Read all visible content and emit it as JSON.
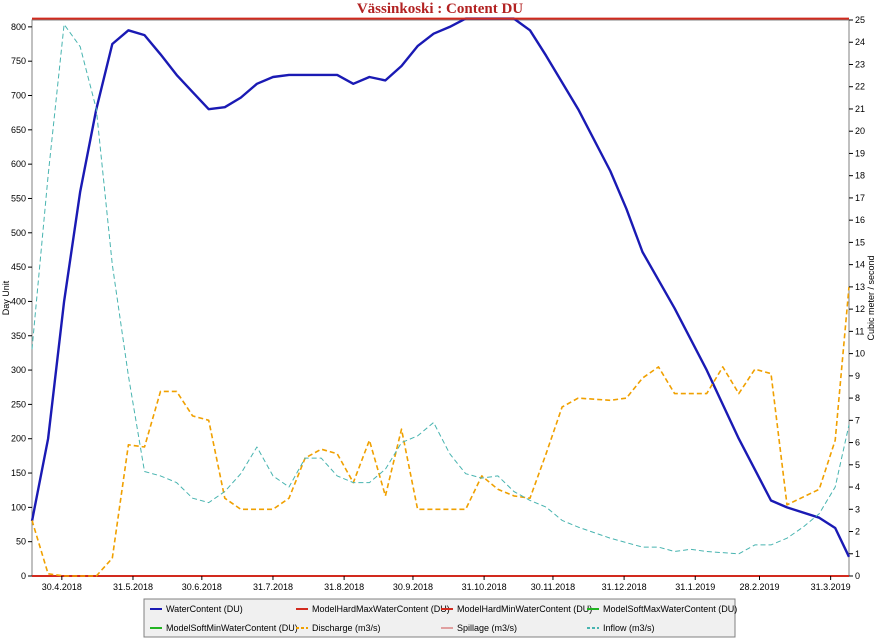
{
  "chart_data": {
    "type": "line",
    "title": "Vässinkoski : Content DU",
    "ylabel": "Day Unit",
    "y2label": "Cubic meter / second",
    "ylim": [
      0,
      810
    ],
    "yticks": [
      0,
      50,
      100,
      150,
      200,
      250,
      300,
      350,
      400,
      450,
      500,
      550,
      600,
      650,
      700,
      750,
      800
    ],
    "y2lim": [
      0,
      25
    ],
    "y2ticks": [
      0,
      1,
      2,
      3,
      4,
      5,
      6,
      7,
      8,
      9,
      10,
      11,
      12,
      13,
      14,
      15,
      16,
      17,
      18,
      19,
      20,
      21,
      22,
      23,
      24,
      25
    ],
    "xlim": [
      "2018-04-17",
      "2019-04-08"
    ],
    "xticks": [
      {
        "date": "2018-04-30",
        "label": "30.4.2018"
      },
      {
        "date": "2018-05-31",
        "label": "31.5.2018"
      },
      {
        "date": "2018-06-30",
        "label": "30.6.2018"
      },
      {
        "date": "2018-07-31",
        "label": "31.7.2018"
      },
      {
        "date": "2018-08-31",
        "label": "31.8.2018"
      },
      {
        "date": "2018-09-30",
        "label": "30.9.2018"
      },
      {
        "date": "2018-10-31",
        "label": "31.10.2018"
      },
      {
        "date": "2018-11-30",
        "label": "30.11.2018"
      },
      {
        "date": "2018-12-31",
        "label": "31.12.2018"
      },
      {
        "date": "2019-01-31",
        "label": "31.1.2019"
      },
      {
        "date": "2019-02-28",
        "label": "28.2.2019"
      },
      {
        "date": "2019-03-31",
        "label": "31.3.2019"
      }
    ],
    "legend_position": "bottom",
    "series": [
      {
        "name": "WaterContent (DU)",
        "axis": "left",
        "color": "#1a1ab4",
        "style": "solid",
        "points": [
          [
            "2018-04-17",
            80
          ],
          [
            "2018-04-24",
            200
          ],
          [
            "2018-05-01",
            400
          ],
          [
            "2018-05-08",
            560
          ],
          [
            "2018-05-15",
            680
          ],
          [
            "2018-05-22",
            775
          ],
          [
            "2018-05-29",
            795
          ],
          [
            "2018-06-05",
            788
          ],
          [
            "2018-06-12",
            760
          ],
          [
            "2018-06-19",
            730
          ],
          [
            "2018-06-26",
            705
          ],
          [
            "2018-07-03",
            680
          ],
          [
            "2018-07-10",
            683
          ],
          [
            "2018-07-17",
            697
          ],
          [
            "2018-07-24",
            717
          ],
          [
            "2018-07-31",
            727
          ],
          [
            "2018-08-07",
            730
          ],
          [
            "2018-08-21",
            730
          ],
          [
            "2018-08-28",
            730
          ],
          [
            "2018-09-04",
            717
          ],
          [
            "2018-09-11",
            727
          ],
          [
            "2018-09-18",
            722
          ],
          [
            "2018-09-25",
            743
          ],
          [
            "2018-10-02",
            772
          ],
          [
            "2018-10-09",
            790
          ],
          [
            "2018-10-16",
            800
          ],
          [
            "2018-10-23",
            812
          ],
          [
            "2018-11-06",
            812
          ],
          [
            "2018-11-13",
            812
          ],
          [
            "2018-11-20",
            795
          ],
          [
            "2018-11-27",
            758
          ],
          [
            "2018-12-11",
            680
          ],
          [
            "2018-12-25",
            590
          ],
          [
            "2019-01-01",
            535
          ],
          [
            "2019-01-08",
            472
          ],
          [
            "2019-01-22",
            390
          ],
          [
            "2019-02-05",
            300
          ],
          [
            "2019-02-19",
            200
          ],
          [
            "2019-03-05",
            110
          ],
          [
            "2019-03-12",
            100
          ],
          [
            "2019-03-26",
            85
          ],
          [
            "2019-04-02",
            70
          ],
          [
            "2019-04-08",
            28
          ]
        ]
      },
      {
        "name": "ModelHardMaxWaterContent (DU)",
        "axis": "left",
        "color": "#d22a1e",
        "style": "solid",
        "points": [
          [
            "2018-04-17",
            812
          ],
          [
            "2019-04-08",
            812
          ]
        ]
      },
      {
        "name": "ModelHardMinWaterContent (DU)",
        "axis": "left",
        "color": "#d22a1e",
        "style": "solid",
        "points": [
          [
            "2018-04-17",
            0
          ],
          [
            "2019-04-08",
            0
          ]
        ]
      },
      {
        "name": "ModelSoftMaxWaterContent (DU)",
        "axis": "left",
        "color": "#22b422",
        "style": "solid",
        "points": []
      },
      {
        "name": "ModelSoftMinWaterContent (DU)",
        "axis": "left",
        "color": "#22b422",
        "style": "solid",
        "points": []
      },
      {
        "name": "Discharge (m3/s)",
        "axis": "right",
        "color": "#f0a000",
        "style": "dashed",
        "points": [
          [
            "2018-04-17",
            2.5
          ],
          [
            "2018-04-24",
            0.1
          ],
          [
            "2018-05-01",
            0
          ],
          [
            "2018-05-15",
            0
          ],
          [
            "2018-05-22",
            0.8
          ],
          [
            "2018-05-29",
            5.9
          ],
          [
            "2018-06-05",
            5.8
          ],
          [
            "2018-06-12",
            8.3
          ],
          [
            "2018-06-19",
            8.3
          ],
          [
            "2018-06-26",
            7.2
          ],
          [
            "2018-07-03",
            7.0
          ],
          [
            "2018-07-10",
            3.5
          ],
          [
            "2018-07-17",
            3.0
          ],
          [
            "2018-07-31",
            3.0
          ],
          [
            "2018-08-07",
            3.5
          ],
          [
            "2018-08-14",
            5.3
          ],
          [
            "2018-08-21",
            5.7
          ],
          [
            "2018-08-28",
            5.5
          ],
          [
            "2018-09-04",
            4.2
          ],
          [
            "2018-09-11",
            6.1
          ],
          [
            "2018-09-18",
            3.6
          ],
          [
            "2018-09-25",
            6.6
          ],
          [
            "2018-10-02",
            3.0
          ],
          [
            "2018-10-23",
            3.0
          ],
          [
            "2018-10-30",
            4.5
          ],
          [
            "2018-11-06",
            3.9
          ],
          [
            "2018-11-13",
            3.6
          ],
          [
            "2018-11-20",
            3.5
          ],
          [
            "2018-11-27",
            5.5
          ],
          [
            "2018-12-04",
            7.6
          ],
          [
            "2018-12-11",
            8.0
          ],
          [
            "2018-12-25",
            7.9
          ],
          [
            "2019-01-01",
            8.0
          ],
          [
            "2019-01-08",
            8.9
          ],
          [
            "2019-01-15",
            9.4
          ],
          [
            "2019-01-22",
            8.2
          ],
          [
            "2019-02-05",
            8.2
          ],
          [
            "2019-02-12",
            9.4
          ],
          [
            "2019-02-19",
            8.2
          ],
          [
            "2019-02-26",
            9.3
          ],
          [
            "2019-03-05",
            9.1
          ],
          [
            "2019-03-12",
            3.2
          ],
          [
            "2019-03-26",
            3.9
          ],
          [
            "2019-04-02",
            6.1
          ],
          [
            "2019-04-08",
            13.0
          ]
        ]
      },
      {
        "name": "Spillage (m3/s)",
        "axis": "right",
        "color": "#e0a0a0",
        "style": "solid",
        "points": []
      },
      {
        "name": "Inflow (m3/s)",
        "axis": "right",
        "color": "#48b4b0",
        "style": "dashed",
        "points": [
          [
            "2018-04-17",
            10.2
          ],
          [
            "2018-04-24",
            18.0
          ],
          [
            "2018-05-01",
            24.8
          ],
          [
            "2018-05-08",
            23.8
          ],
          [
            "2018-05-15",
            21.0
          ],
          [
            "2018-05-22",
            14.0
          ],
          [
            "2018-05-29",
            9.0
          ],
          [
            "2018-06-05",
            4.7
          ],
          [
            "2018-06-12",
            4.5
          ],
          [
            "2018-06-19",
            4.2
          ],
          [
            "2018-06-26",
            3.5
          ],
          [
            "2018-07-03",
            3.3
          ],
          [
            "2018-07-10",
            3.8
          ],
          [
            "2018-07-17",
            4.6
          ],
          [
            "2018-07-24",
            5.8
          ],
          [
            "2018-07-31",
            4.5
          ],
          [
            "2018-08-07",
            4.0
          ],
          [
            "2018-08-14",
            5.3
          ],
          [
            "2018-08-21",
            5.3
          ],
          [
            "2018-08-28",
            4.5
          ],
          [
            "2018-09-04",
            4.2
          ],
          [
            "2018-09-11",
            4.2
          ],
          [
            "2018-09-18",
            4.8
          ],
          [
            "2018-09-25",
            6.0
          ],
          [
            "2018-10-02",
            6.3
          ],
          [
            "2018-10-09",
            6.9
          ],
          [
            "2018-10-16",
            5.5
          ],
          [
            "2018-10-23",
            4.6
          ],
          [
            "2018-10-30",
            4.4
          ],
          [
            "2018-11-06",
            4.5
          ],
          [
            "2018-11-13",
            3.8
          ],
          [
            "2018-11-20",
            3.4
          ],
          [
            "2018-11-27",
            3.1
          ],
          [
            "2018-12-04",
            2.5
          ],
          [
            "2018-12-11",
            2.2
          ],
          [
            "2018-12-25",
            1.7
          ],
          [
            "2019-01-08",
            1.3
          ],
          [
            "2019-01-15",
            1.3
          ],
          [
            "2019-01-22",
            1.1
          ],
          [
            "2019-01-29",
            1.2
          ],
          [
            "2019-02-05",
            1.1
          ],
          [
            "2019-02-19",
            1.0
          ],
          [
            "2019-02-26",
            1.4
          ],
          [
            "2019-03-05",
            1.4
          ],
          [
            "2019-03-12",
            1.7
          ],
          [
            "2019-03-19",
            2.2
          ],
          [
            "2019-03-26",
            2.8
          ],
          [
            "2019-04-02",
            4.0
          ],
          [
            "2019-04-08",
            6.8
          ]
        ]
      }
    ]
  }
}
